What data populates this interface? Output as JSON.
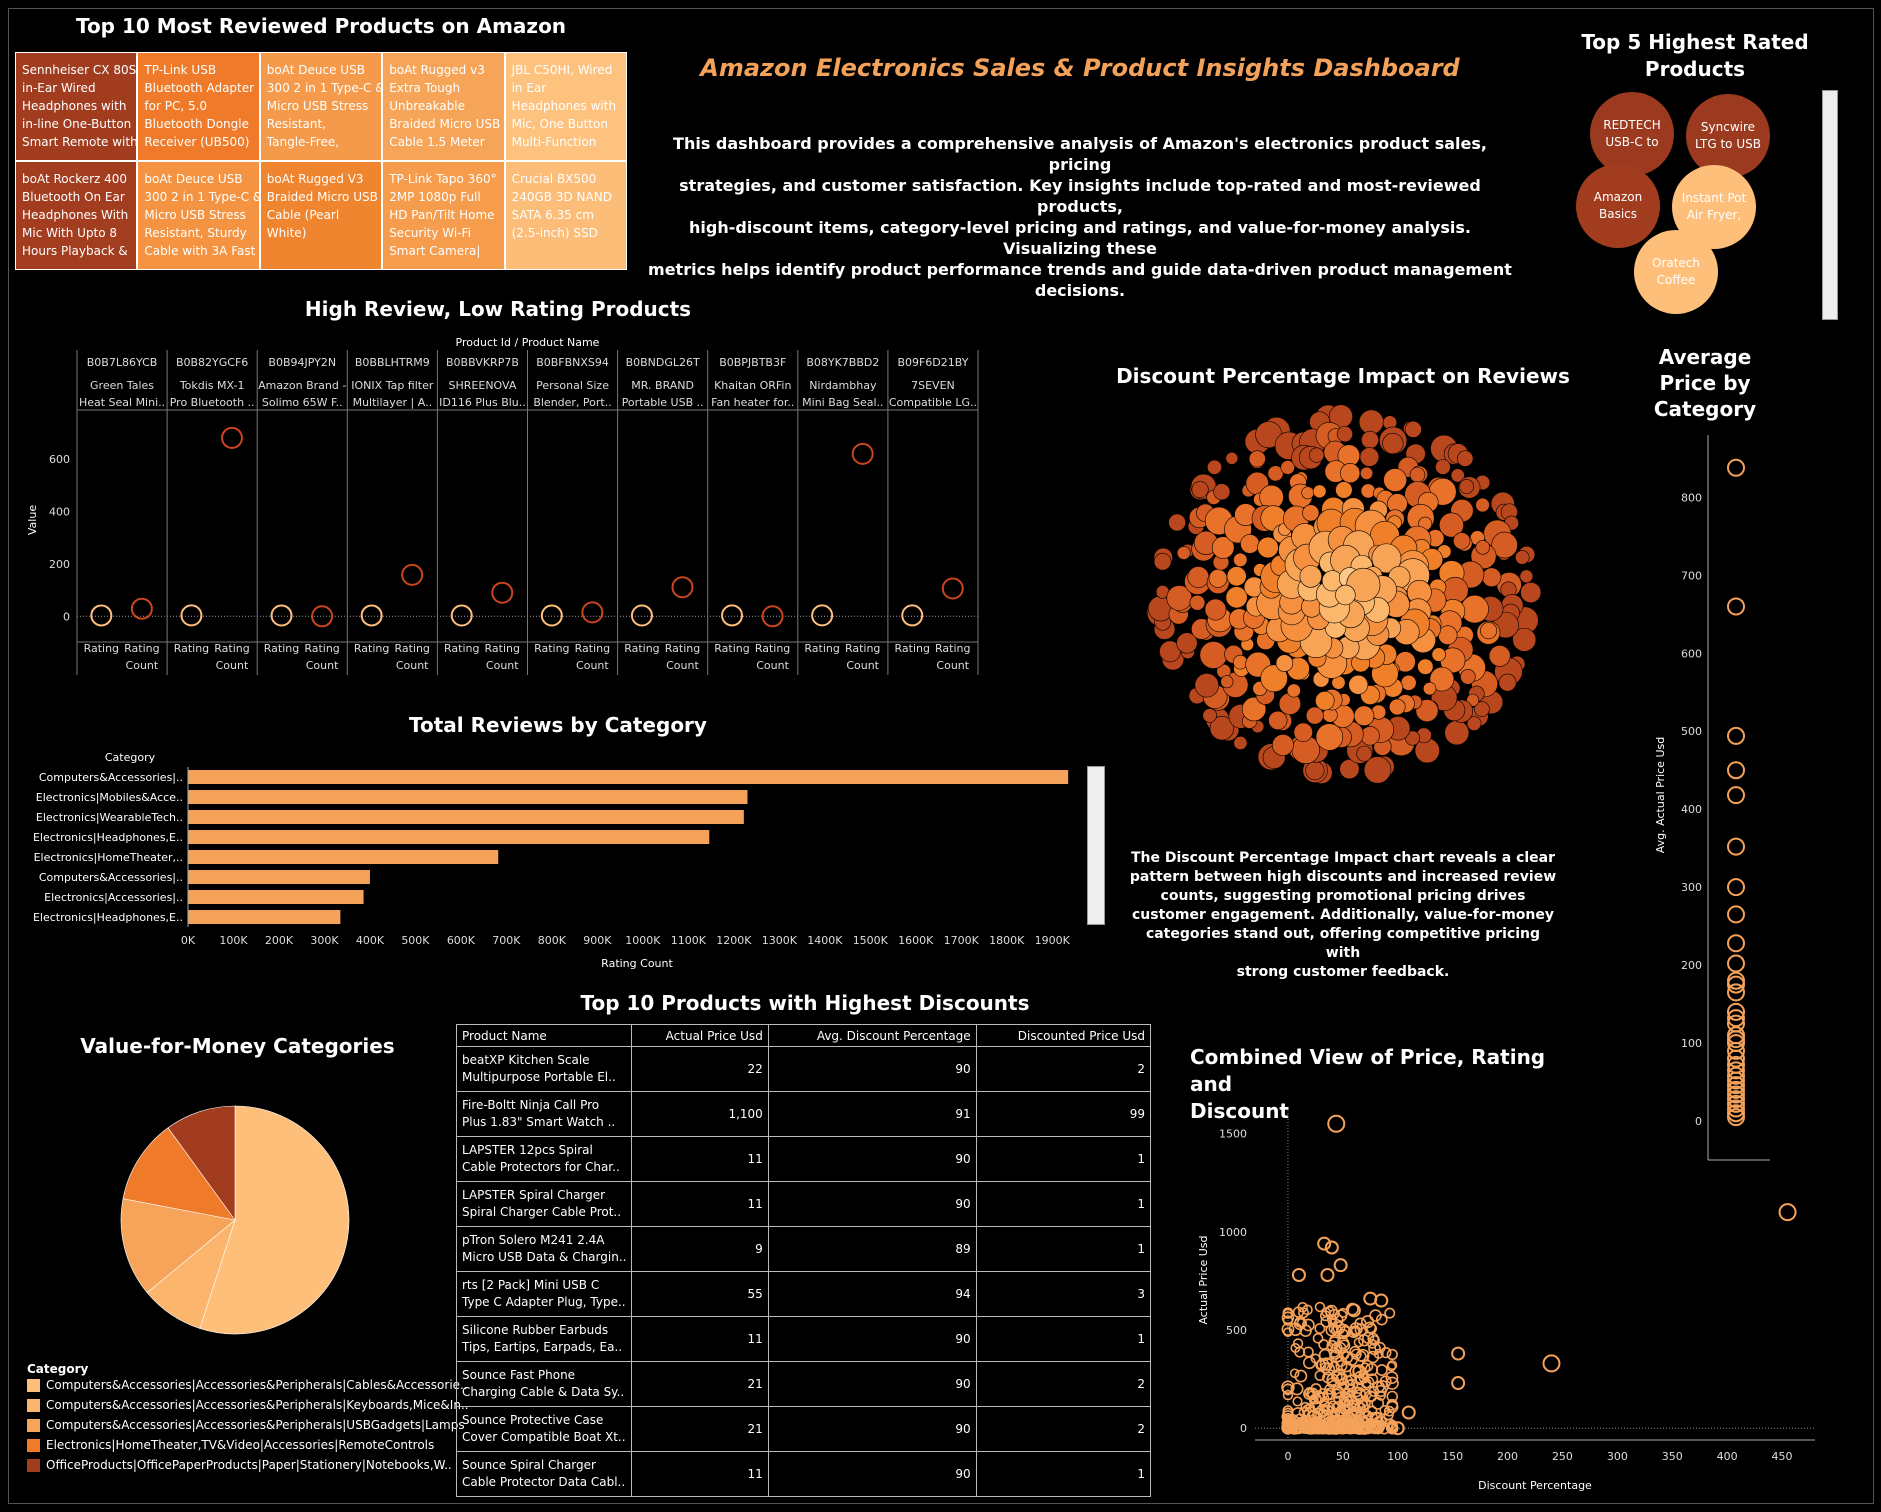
{
  "dashboard": {
    "title": "Amazon Electronics Sales & Product Insights Dashboard",
    "description": [
      "This dashboard provides a comprehensive analysis of Amazon's electronics product sales, pricing",
      "strategies, and customer satisfaction. Key insights include top-rated and most-reviewed products,",
      "high-discount items, category-level pricing and ratings, and value-for-money analysis. Visualizing these",
      "metrics helps identify product performance trends and guide data-driven product management decisions."
    ],
    "discount_insight": [
      "The Discount Percentage Impact chart reveals a clear",
      "pattern between high discounts and increased review",
      "counts, suggesting promotional pricing drives",
      "customer engagement. Additionally, value-for-money",
      "categories stand out, offering competitive pricing with",
      "strong customer feedback."
    ]
  },
  "colors": {
    "background": "#000000",
    "accent": "#f4a15a",
    "dark_rust": "#9b3a1f",
    "orange": "#f07f2a",
    "light": "#fdbf7a"
  },
  "chart_data": [
    {
      "id": "most_reviewed",
      "type": "treemap",
      "title": "Top 10 Most Reviewed Products on Amazon",
      "tiles": [
        {
          "text": [
            "Sennheiser CX 80S",
            "in-Ear Wired",
            "Headphones with",
            "in-line One-Button",
            "Smart Remote with"
          ],
          "color": "#a23c1e"
        },
        {
          "text": [
            "TP-Link USB",
            "Bluetooth Adapter",
            "for PC, 5.0",
            "Bluetooth Dongle",
            "Receiver (UB500)"
          ],
          "color": "#ef7b2a"
        },
        {
          "text": [
            "boAt Deuce USB",
            "300 2 in 1 Type-C &",
            "Micro USB Stress",
            "Resistant,",
            "Tangle-Free,"
          ],
          "color": "#f5994a"
        },
        {
          "text": [
            "boAt Rugged v3",
            "Extra Tough",
            "Unbreakable",
            "Braided Micro USB",
            "Cable 1.5 Meter"
          ],
          "color": "#f6a558"
        },
        {
          "text": [
            "JBL C50HI, Wired",
            "in Ear",
            "Headphones with",
            "Mic, One Button",
            "Multi-Function"
          ],
          "color": "#fdc27e"
        },
        {
          "text": [
            "boAt Rockerz 400",
            "Bluetooth On Ear",
            "Headphones With",
            "Mic With Upto 8",
            "Hours Playback &"
          ],
          "color": "#a33d1f"
        },
        {
          "text": [
            "boAt Deuce USB",
            "300 2 in 1 Type-C &",
            "Micro USB Stress",
            "Resistant, Sturdy",
            "Cable with 3A Fast"
          ],
          "color": "#f49442"
        },
        {
          "text": [
            "boAt Rugged V3",
            "Braided Micro USB",
            "Cable (Pearl",
            "White)"
          ],
          "color": "#f0852f"
        },
        {
          "text": [
            "TP-Link Tapo 360°",
            "2MP 1080p Full",
            "HD Pan/Tilt Home",
            "Security Wi-Fi",
            "Smart Camera|"
          ],
          "color": "#f59c4d"
        },
        {
          "text": [
            "Crucial BX500",
            "240GB 3D NAND",
            "SATA 6.35 cm",
            "(2.5-inch) SSD"
          ],
          "color": "#fcbd78"
        }
      ]
    },
    {
      "id": "highest_rated",
      "type": "bubble",
      "title": "Top 5 Highest Rated Products",
      "bubbles": [
        {
          "label": [
            "REDTECH",
            "USB-C to"
          ],
          "color": "#9b3a1f"
        },
        {
          "label": [
            "Syncwire",
            "LTG to USB"
          ],
          "color": "#9b3a1f"
        },
        {
          "label": [
            "Amazon",
            "Basics"
          ],
          "color": "#a13c1f"
        },
        {
          "label": [
            "Instant Pot",
            "Air Fryer,"
          ],
          "color": "#fdbf7a"
        },
        {
          "label": [
            "Oratech",
            "Coffee"
          ],
          "color": "#fdbf7a"
        }
      ]
    },
    {
      "id": "high_review_low_rating",
      "type": "scatter",
      "title": "High Review, Low Rating Products",
      "header_label": "Product Id / Product Name",
      "ylabel": "Value",
      "ylim": [
        -60,
        780
      ],
      "yticks": [
        0,
        200,
        400,
        600
      ],
      "measures": [
        "Rating",
        "Rating Count"
      ],
      "measure_labels": [
        [
          "Rating"
        ],
        [
          "Rating",
          "Count"
        ]
      ],
      "products": [
        {
          "id": "B0B7L86YCB",
          "name": "Green Tales",
          "name2": "Heat Seal Mini..",
          "rating": 3.2,
          "rating_count": 29
        },
        {
          "id": "B0B82YGCF6",
          "name": "Tokdis MX-1",
          "name2": "Pro Bluetooth ..",
          "rating": 3.4,
          "rating_count": 681
        },
        {
          "id": "B0B94JPY2N",
          "name": "Amazon Brand -",
          "name2": "Solimo 65W F..",
          "rating": 3.0,
          "rating_count": 0
        },
        {
          "id": "B0BBLHTRM9",
          "name": "IONIX Tap filter",
          "name2": "Multilayer | A..",
          "rating": 3.2,
          "rating_count": 158
        },
        {
          "id": "B0BBVKRP7B",
          "name": "SHREENOVA",
          "name2": "ID116 Plus Blu..",
          "rating": 3.1,
          "rating_count": 90
        },
        {
          "id": "B0BFBNXS94",
          "name": "Personal Size",
          "name2": "Blender, Port..",
          "rating": 3.0,
          "rating_count": 15
        },
        {
          "id": "B0BNDGL26T",
          "name": "MR. BRAND",
          "name2": "Portable USB ..",
          "rating": 3.0,
          "rating_count": 111
        },
        {
          "id": "B0BPJBTB3F",
          "name": "Khaitan ORFin",
          "name2": "Fan heater for..",
          "rating": 3.3,
          "rating_count": 0
        },
        {
          "id": "B08YK7BBD2",
          "name": "Nirdambhay",
          "name2": "Mini Bag Seal..",
          "rating": 3.4,
          "rating_count": 620
        },
        {
          "id": "B09F6D21BY",
          "name": "7SEVEN",
          "name2": "Compatible LG..",
          "rating": 3.3,
          "rating_count": 106
        }
      ]
    },
    {
      "id": "reviews_by_category",
      "type": "bar",
      "orientation": "horizontal",
      "title": "Total Reviews by Category",
      "category_header": "Category",
      "xlabel": "Rating Count",
      "xlim": [
        0,
        1950000
      ],
      "xticks": [
        "0K",
        "100K",
        "200K",
        "300K",
        "400K",
        "500K",
        "600K",
        "700K",
        "800K",
        "900K",
        "1000K",
        "1100K",
        "1200K",
        "1300K",
        "1400K",
        "1500K",
        "1600K",
        "1700K",
        "1800K",
        "1900K"
      ],
      "categories": [
        "Computers&Accessories|..",
        "Electronics|Mobiles&Acce..",
        "Electronics|WearableTech..",
        "Electronics|Headphones,E..",
        "Electronics|HomeTheater,..",
        "Computers&Accessories|..",
        "Electronics|Accessories|..",
        "Electronics|Headphones,E.."
      ],
      "values": [
        1935000,
        1230000,
        1222000,
        1146000,
        682000,
        400000,
        386000,
        335000
      ]
    },
    {
      "id": "discount_impact",
      "type": "packed_bubble",
      "title": "Discount Percentage Impact on Reviews"
    },
    {
      "id": "avg_price_by_category",
      "type": "scatter",
      "title": [
        "Average",
        "Price by",
        "Category"
      ],
      "ylabel": "Avg. Actual Price Usd",
      "ylim": [
        -50,
        880
      ],
      "yticks": [
        0,
        100,
        200,
        300,
        400,
        500,
        600,
        700,
        800
      ],
      "values": [
        838,
        660,
        494,
        450,
        418,
        352,
        300,
        265,
        228,
        202,
        180,
        175,
        165,
        140,
        132,
        125,
        110,
        105,
        100,
        90,
        80,
        72,
        65,
        58,
        52,
        46,
        40,
        34,
        28,
        22,
        16,
        10,
        5
      ]
    },
    {
      "id": "value_for_money",
      "type": "pie",
      "title": "Value-for-Money Categories",
      "legend_title": "Category",
      "slices": [
        {
          "label": "Computers&Accessories|Accessories&Peripherals|Cables&Accessorie..",
          "value": 55,
          "color": "#fdbf7a"
        },
        {
          "label": "Computers&Accessories|Accessories&Peripherals|Keyboards,Mice&In..",
          "value": 9,
          "color": "#fbb56c"
        },
        {
          "label": "Computers&Accessories|Accessories&Peripherals|USBGadgets|Lamps",
          "value": 14,
          "color": "#f5a45a"
        },
        {
          "label": "Electronics|HomeTheater,TV&Video|Accessories|RemoteControls",
          "value": 12,
          "color": "#ef7b2a"
        },
        {
          "label": "OfficeProducts|OfficePaperProducts|Paper|Stationery|Notebooks,W..",
          "value": 10,
          "color": "#a23c1e"
        }
      ]
    },
    {
      "id": "highest_discounts",
      "type": "table",
      "title": "Top 10 Products with Highest Discounts",
      "columns": [
        "Product Name",
        "Actual Price Usd",
        "Avg. Discount Percentage",
        "Discounted Price Usd"
      ],
      "rows": [
        {
          "name": [
            "beatXP Kitchen Scale",
            "Multipurpose Portable El.."
          ],
          "actual": "22",
          "discount": "90",
          "discounted": "2"
        },
        {
          "name": [
            "Fire-Boltt Ninja Call Pro",
            "Plus 1.83\" Smart Watch .."
          ],
          "actual": "1,100",
          "discount": "91",
          "discounted": "99"
        },
        {
          "name": [
            "LAPSTER 12pcs Spiral",
            "Cable Protectors for Char.."
          ],
          "actual": "11",
          "discount": "90",
          "discounted": "1"
        },
        {
          "name": [
            "LAPSTER Spiral Charger",
            "Spiral Charger Cable Prot.."
          ],
          "actual": "11",
          "discount": "90",
          "discounted": "1"
        },
        {
          "name": [
            "pTron Solero M241 2.4A",
            "Micro USB Data & Chargin.."
          ],
          "actual": "9",
          "discount": "89",
          "discounted": "1"
        },
        {
          "name": [
            "rts [2 Pack] Mini USB C",
            "Type C Adapter Plug, Type.."
          ],
          "actual": "55",
          "discount": "94",
          "discounted": "3"
        },
        {
          "name": [
            "Silicone Rubber Earbuds",
            "Tips, Eartips, Earpads, Ea.."
          ],
          "actual": "11",
          "discount": "90",
          "discounted": "1"
        },
        {
          "name": [
            "Sounce Fast Phone",
            "Charging Cable & Data Sy.."
          ],
          "actual": "21",
          "discount": "90",
          "discounted": "2"
        },
        {
          "name": [
            "Sounce Protective Case",
            "Cover Compatible Boat Xt.."
          ],
          "actual": "21",
          "discount": "90",
          "discounted": "2"
        },
        {
          "name": [
            "Sounce Spiral Charger",
            "Cable Protector Data Cabl.."
          ],
          "actual": "11",
          "discount": "90",
          "discounted": "1"
        }
      ]
    },
    {
      "id": "combined_view",
      "type": "scatter",
      "title": [
        "Combined View of Price, Rating and",
        "Discount"
      ],
      "xlabel": "Discount Percentage",
      "ylabel": "Actual Price Usd",
      "xlim": [
        -30,
        480
      ],
      "ylim": [
        -60,
        1620
      ],
      "xticks": [
        0,
        50,
        100,
        150,
        200,
        250,
        300,
        350,
        400,
        450
      ],
      "yticks": [
        0,
        500,
        1000,
        1500
      ],
      "outliers": [
        {
          "x": 44,
          "y": 1550
        },
        {
          "x": 85,
          "y": 650
        },
        {
          "x": 155,
          "y": 380
        },
        {
          "x": 155,
          "y": 230
        },
        {
          "x": 240,
          "y": 330
        },
        {
          "x": 455,
          "y": 1100
        },
        {
          "x": 33,
          "y": 940
        },
        {
          "x": 40,
          "y": 920
        },
        {
          "x": 10,
          "y": 780
        },
        {
          "x": 36,
          "y": 780
        },
        {
          "x": 48,
          "y": 830
        },
        {
          "x": 75,
          "y": 660
        },
        {
          "x": 60,
          "y": 600
        },
        {
          "x": 110,
          "y": 80
        },
        {
          "x": 100,
          "y": 0
        }
      ]
    }
  ]
}
